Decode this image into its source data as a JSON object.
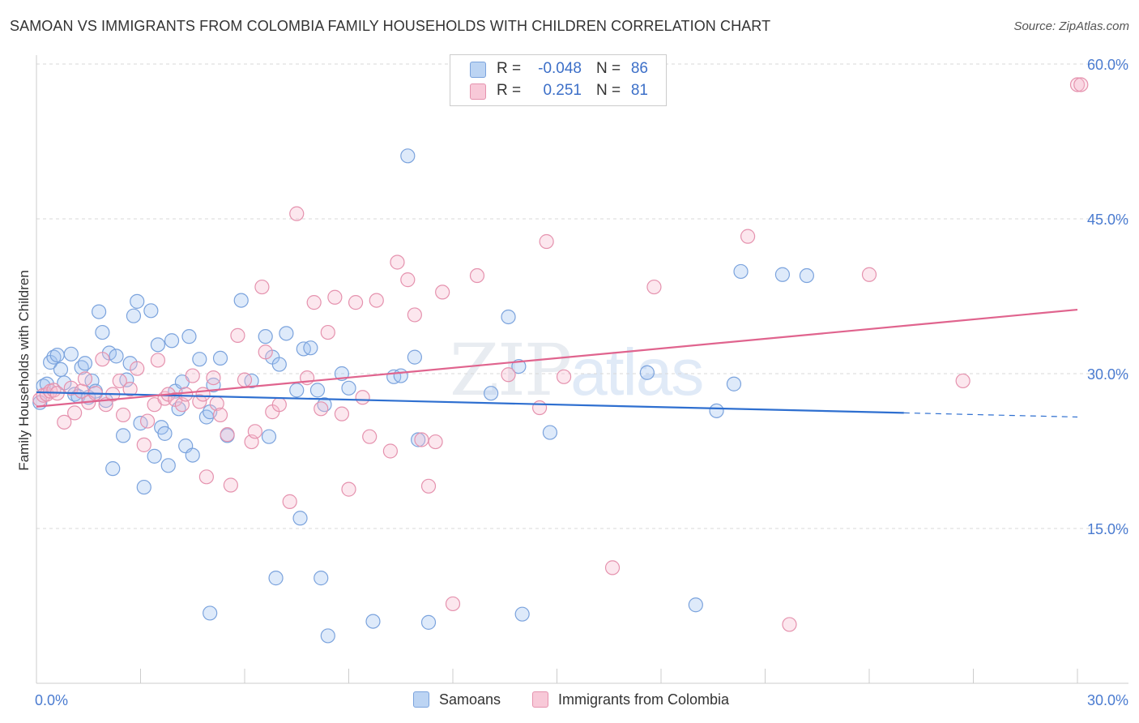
{
  "title": "SAMOAN VS IMMIGRANTS FROM COLOMBIA FAMILY HOUSEHOLDS WITH CHILDREN CORRELATION CHART",
  "source": "Source: ZipAtlas.com",
  "watermark": {
    "part1": "ZIP",
    "part2": "atlas"
  },
  "stats": [
    {
      "r_label": "R =",
      "r_value": "-0.048",
      "n_label": "N =",
      "n_value": "86",
      "color": "#7ba3dd"
    },
    {
      "r_label": "R =",
      "r_value": "0.251",
      "n_label": "N =",
      "n_value": "81",
      "color": "#e592ae"
    }
  ],
  "legend": [
    {
      "label": "Samoans",
      "color": "#7ba3dd"
    },
    {
      "label": "Immigrants from Colombia",
      "color": "#e592ae"
    }
  ],
  "chart_data": {
    "type": "scatter",
    "ylabel": "Family Households with Children",
    "xlabel": "",
    "x_tick_labels": [
      "0.0%",
      "30.0%"
    ],
    "y_tick_labels": [
      "60.0%",
      "45.0%",
      "30.0%",
      "15.0%"
    ],
    "xlim": [
      0,
      30
    ],
    "ylim": [
      0,
      60
    ],
    "y_ticks": [
      60,
      45,
      30,
      15
    ],
    "grid": true,
    "series": [
      {
        "name": "Samoans",
        "color": "#7ba3dd",
        "fill": "rgba(160,195,240,0.35)",
        "trend": {
          "x0": 0,
          "y0": 28.2,
          "x1": 25.0,
          "y1": 26.2,
          "dash_to_x": 30.0,
          "dash_to_y": 25.8,
          "color": "#2e6fd0"
        },
        "points": [
          [
            0.1,
            27.2
          ],
          [
            0.2,
            28.8
          ],
          [
            0.3,
            29.0
          ],
          [
            0.4,
            31.1
          ],
          [
            0.5,
            31.6
          ],
          [
            0.6,
            31.8
          ],
          [
            0.7,
            30.4
          ],
          [
            0.8,
            29.1
          ],
          [
            1.0,
            31.9
          ],
          [
            1.1,
            28.0
          ],
          [
            1.2,
            27.8
          ],
          [
            1.3,
            30.6
          ],
          [
            1.4,
            31.0
          ],
          [
            1.5,
            27.7
          ],
          [
            1.6,
            29.3
          ],
          [
            1.7,
            28.3
          ],
          [
            1.8,
            36.0
          ],
          [
            1.9,
            34.0
          ],
          [
            2.0,
            27.4
          ],
          [
            2.1,
            32.0
          ],
          [
            2.3,
            31.7
          ],
          [
            2.2,
            20.8
          ],
          [
            2.5,
            24.0
          ],
          [
            2.6,
            29.4
          ],
          [
            2.7,
            31.0
          ],
          [
            2.8,
            35.6
          ],
          [
            2.9,
            37.0
          ],
          [
            3.0,
            25.2
          ],
          [
            3.1,
            19.0
          ],
          [
            3.3,
            36.1
          ],
          [
            3.4,
            22.0
          ],
          [
            3.5,
            32.8
          ],
          [
            3.6,
            24.8
          ],
          [
            3.7,
            24.2
          ],
          [
            3.8,
            21.1
          ],
          [
            3.9,
            33.2
          ],
          [
            4.0,
            28.3
          ],
          [
            4.1,
            26.6
          ],
          [
            4.2,
            29.2
          ],
          [
            4.3,
            23.0
          ],
          [
            4.4,
            33.6
          ],
          [
            4.5,
            22.1
          ],
          [
            4.7,
            31.4
          ],
          [
            4.9,
            25.8
          ],
          [
            5.0,
            26.3
          ],
          [
            5.1,
            28.9
          ],
          [
            5.3,
            31.5
          ],
          [
            5.5,
            24.0
          ],
          [
            5.9,
            37.1
          ],
          [
            6.2,
            29.3
          ],
          [
            6.6,
            33.6
          ],
          [
            6.7,
            23.9
          ],
          [
            6.8,
            31.6
          ],
          [
            7.0,
            30.9
          ],
          [
            7.2,
            33.9
          ],
          [
            7.5,
            28.4
          ],
          [
            7.7,
            32.4
          ],
          [
            7.9,
            32.5
          ],
          [
            8.1,
            28.4
          ],
          [
            8.3,
            27.0
          ],
          [
            8.8,
            30.0
          ],
          [
            9.0,
            28.6
          ],
          [
            10.3,
            29.7
          ],
          [
            10.5,
            29.8
          ],
          [
            10.9,
            31.6
          ],
          [
            11.0,
            23.6
          ],
          [
            13.1,
            28.1
          ],
          [
            13.6,
            35.5
          ],
          [
            13.9,
            30.7
          ],
          [
            14.8,
            24.3
          ],
          [
            17.6,
            30.1
          ],
          [
            19.6,
            26.4
          ],
          [
            20.1,
            29.0
          ],
          [
            20.3,
            39.9
          ],
          [
            21.5,
            39.6
          ],
          [
            22.2,
            39.5
          ],
          [
            10.7,
            51.1
          ],
          [
            7.6,
            16.0
          ],
          [
            6.9,
            10.2
          ],
          [
            8.2,
            10.2
          ],
          [
            5.0,
            6.8
          ],
          [
            8.4,
            4.6
          ],
          [
            9.7,
            6.0
          ],
          [
            11.3,
            5.9
          ],
          [
            14.0,
            6.7
          ],
          [
            19.0,
            7.6
          ]
        ]
      },
      {
        "name": "Immigrants from Colombia",
        "color": "#e592ae",
        "fill": "rgba(245,185,205,0.35)",
        "trend": {
          "x0": 0,
          "y0": 26.8,
          "x1": 30.0,
          "y1": 36.2,
          "color": "#e0648e"
        },
        "points": [
          [
            0.1,
            27.5
          ],
          [
            0.2,
            27.9
          ],
          [
            0.3,
            28.0
          ],
          [
            0.4,
            28.3
          ],
          [
            0.5,
            28.4
          ],
          [
            0.6,
            28.1
          ],
          [
            0.8,
            25.3
          ],
          [
            1.0,
            28.6
          ],
          [
            1.1,
            26.2
          ],
          [
            1.3,
            28.3
          ],
          [
            1.4,
            29.5
          ],
          [
            1.5,
            27.2
          ],
          [
            1.7,
            28.1
          ],
          [
            1.9,
            31.4
          ],
          [
            2.0,
            27.0
          ],
          [
            2.2,
            28.0
          ],
          [
            2.4,
            29.3
          ],
          [
            2.5,
            26.0
          ],
          [
            2.7,
            28.5
          ],
          [
            2.9,
            30.5
          ],
          [
            3.1,
            23.1
          ],
          [
            3.2,
            25.4
          ],
          [
            3.4,
            27.0
          ],
          [
            3.5,
            31.3
          ],
          [
            3.7,
            27.6
          ],
          [
            3.8,
            28.0
          ],
          [
            4.0,
            27.5
          ],
          [
            4.2,
            27.0
          ],
          [
            4.3,
            28.0
          ],
          [
            4.5,
            29.8
          ],
          [
            4.7,
            27.3
          ],
          [
            4.8,
            28.0
          ],
          [
            4.9,
            20.0
          ],
          [
            5.1,
            29.6
          ],
          [
            5.2,
            27.1
          ],
          [
            5.3,
            26.0
          ],
          [
            5.5,
            24.1
          ],
          [
            5.6,
            19.2
          ],
          [
            5.8,
            33.7
          ],
          [
            6.0,
            29.4
          ],
          [
            6.2,
            23.4
          ],
          [
            6.3,
            24.4
          ],
          [
            6.5,
            38.4
          ],
          [
            6.6,
            32.1
          ],
          [
            6.8,
            26.3
          ],
          [
            7.0,
            27.0
          ],
          [
            7.3,
            17.6
          ],
          [
            7.5,
            45.5
          ],
          [
            7.8,
            29.6
          ],
          [
            8.0,
            36.9
          ],
          [
            8.2,
            26.6
          ],
          [
            8.4,
            34.0
          ],
          [
            8.6,
            37.4
          ],
          [
            8.8,
            26.1
          ],
          [
            9.0,
            18.8
          ],
          [
            9.2,
            36.9
          ],
          [
            9.4,
            27.7
          ],
          [
            9.6,
            23.9
          ],
          [
            9.8,
            37.1
          ],
          [
            10.2,
            22.5
          ],
          [
            10.4,
            40.8
          ],
          [
            10.7,
            39.1
          ],
          [
            10.9,
            35.7
          ],
          [
            11.1,
            23.6
          ],
          [
            11.3,
            19.1
          ],
          [
            11.5,
            23.4
          ],
          [
            11.7,
            37.9
          ],
          [
            12.0,
            7.7
          ],
          [
            12.7,
            39.5
          ],
          [
            13.6,
            29.9
          ],
          [
            14.5,
            26.7
          ],
          [
            14.7,
            42.8
          ],
          [
            15.2,
            29.7
          ],
          [
            16.6,
            11.2
          ],
          [
            17.8,
            38.4
          ],
          [
            20.5,
            43.3
          ],
          [
            21.7,
            5.7
          ],
          [
            24.0,
            39.6
          ],
          [
            26.7,
            29.3
          ],
          [
            30.0,
            58.0
          ],
          [
            30.1,
            58.0
          ]
        ]
      }
    ]
  }
}
